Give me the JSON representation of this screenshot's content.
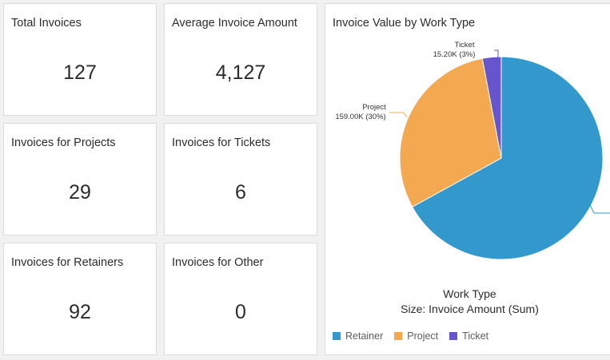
{
  "kpis": [
    {
      "title": "Total Invoices",
      "value": "127"
    },
    {
      "title": "Average Invoice Amount",
      "value": "4,127"
    },
    {
      "title": "Invoices for Projects",
      "value": "29"
    },
    {
      "title": "Invoices for Tickets",
      "value": "6"
    },
    {
      "title": "Invoices for Retainers",
      "value": "92"
    },
    {
      "title": "Invoices for Other",
      "value": "0"
    }
  ],
  "chart_data": {
    "type": "pie",
    "title": "Invoice Value by Work Type",
    "dimension_label": "Work Type",
    "size_label": "Size: Invoice Amount (Sum)",
    "slices": [
      {
        "name": "Retainer",
        "value_label": "",
        "percent": 67,
        "color": "#3399cc"
      },
      {
        "name": "Project",
        "value_label": "159.00K (30%)",
        "percent": 30,
        "color": "#f4a951"
      },
      {
        "name": "Ticket",
        "value_label": "15.20K (3%)",
        "percent": 3,
        "color": "#6655cc"
      }
    ],
    "legend": [
      "Retainer",
      "Project",
      "Ticket"
    ]
  }
}
